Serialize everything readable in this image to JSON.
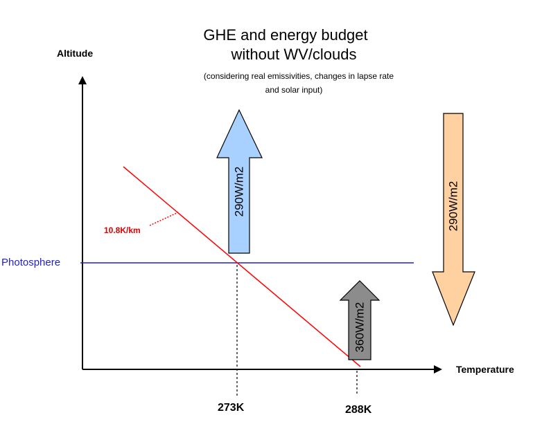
{
  "title_line1": "GHE and energy budget",
  "title_line2": "without WV/clouds",
  "subtitle_line1": "(considering real emissivities, changes in lapse rate",
  "subtitle_line2": "and solar input)",
  "y_axis_label": "Altitude",
  "x_axis_label": "Temperature",
  "photosphere_label": "Photosphere",
  "lapse_rate_label": "10.8K/km",
  "temp_photosphere": "273K",
  "temp_surface": "288K",
  "arrow_up_photosphere": {
    "label": "290W/m2",
    "color": "#a8d1ff"
  },
  "arrow_down_solar": {
    "label": "290W/m2",
    "color": "#ffd0a0"
  },
  "arrow_up_surface": {
    "label": "360W/m2",
    "color": "#8c8c8c"
  },
  "colors": {
    "lapse_line": "#ff0000",
    "photosphere_line": "#1f1fd2",
    "axis": "#000000"
  }
}
